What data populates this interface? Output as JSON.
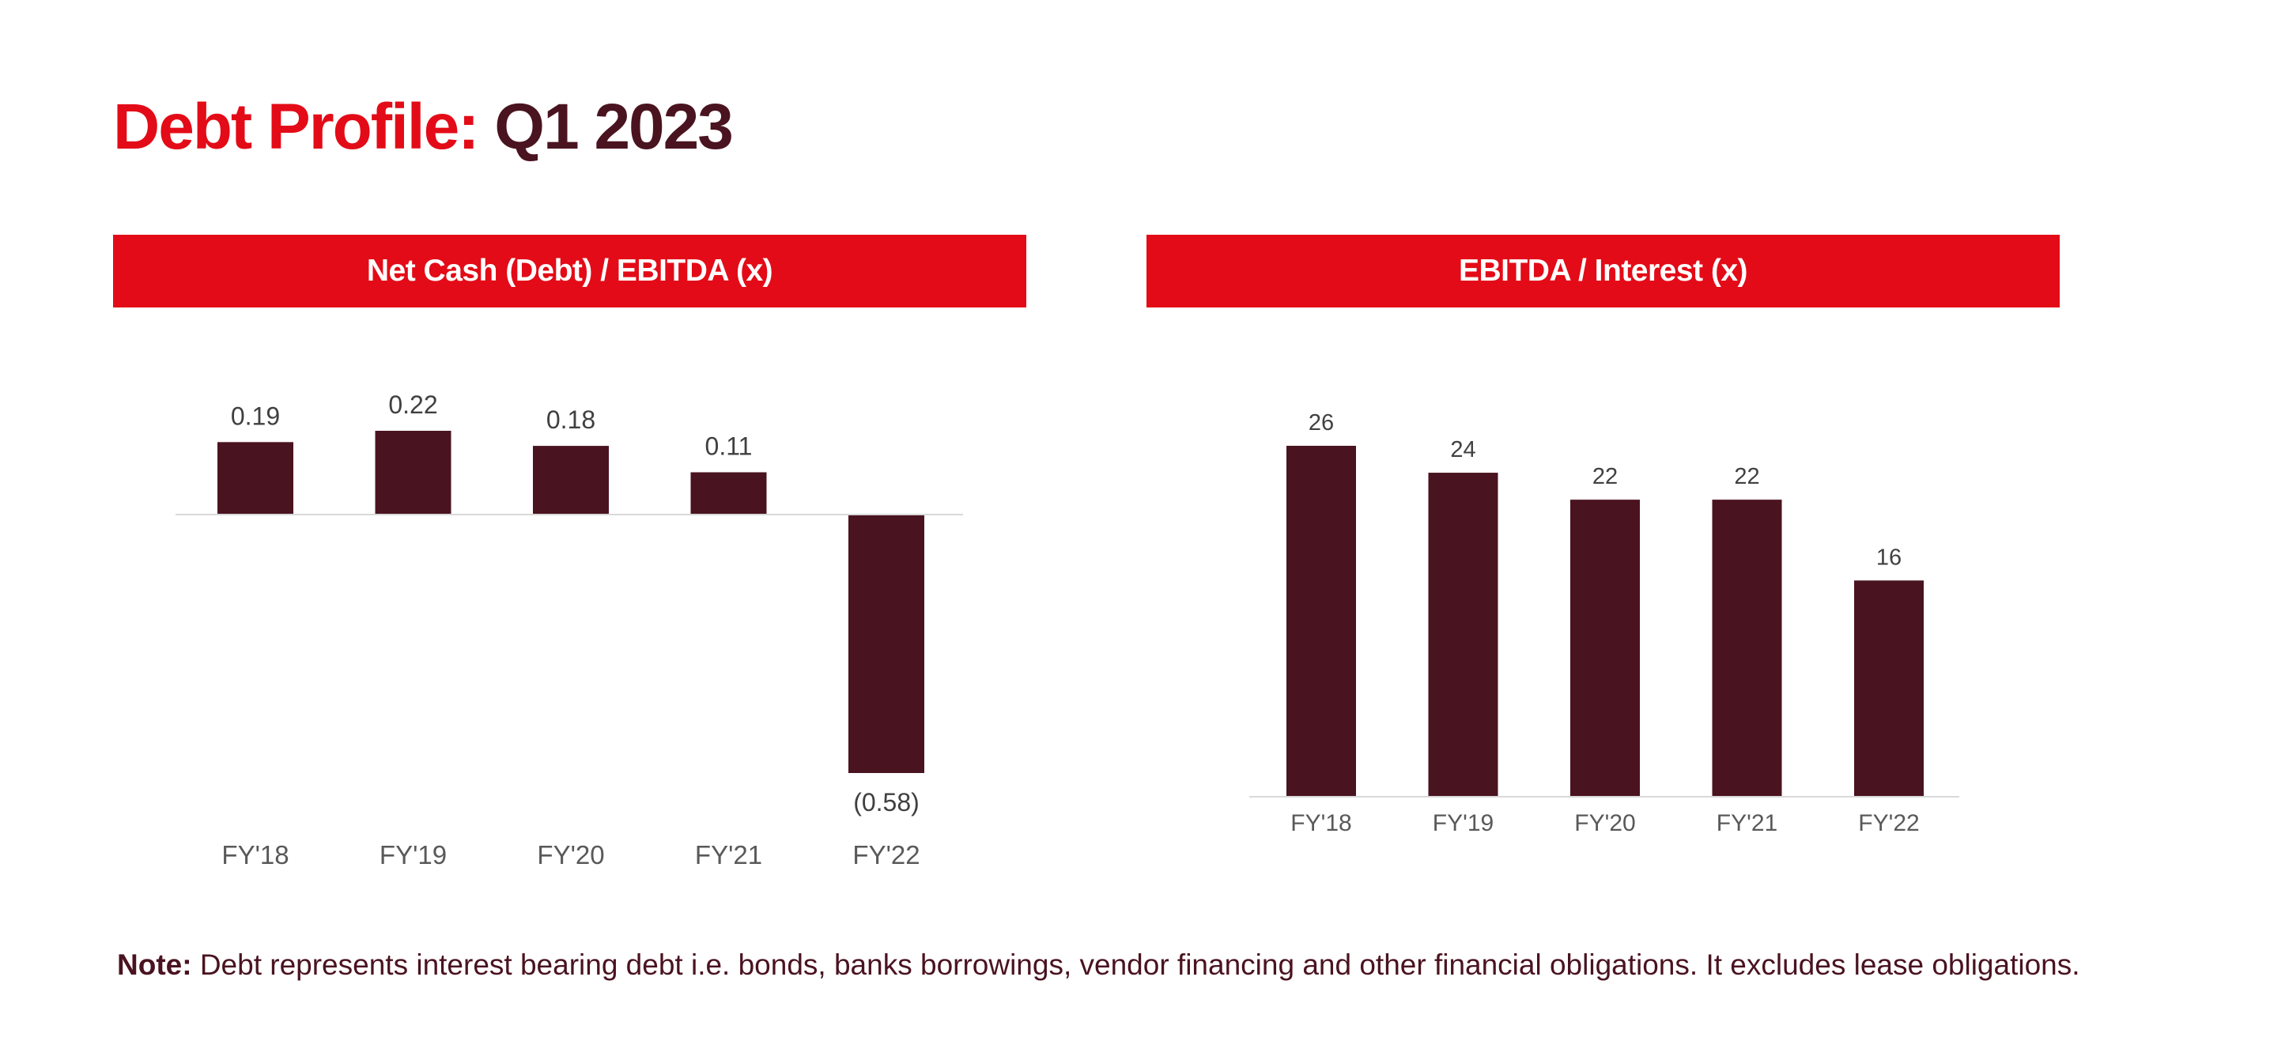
{
  "title": {
    "part1": "Debt Profile:",
    "part2": "Q1 2023"
  },
  "colors": {
    "accent": "#e30b17",
    "bar": "#4a1320",
    "axis": "#d9d9d9",
    "label": "#404040",
    "tick": "#595959"
  },
  "note": {
    "label": "Note:",
    "text": "Debt represents interest bearing debt i.e. bonds, banks borrowings, vendor financing and other financial obligations. It excludes lease obligations."
  },
  "chart_data": [
    {
      "type": "bar",
      "title": "Net Cash (Debt) / EBITDA (x)",
      "categories": [
        "FY'18",
        "FY'19",
        "FY'20",
        "FY'21",
        "FY'22"
      ],
      "values": [
        0.19,
        0.22,
        0.18,
        0.11,
        -0.58
      ],
      "labels": [
        "0.19",
        "0.22",
        "0.18",
        "0.11",
        "(0.58)"
      ],
      "ylim": [
        -0.58,
        0.22
      ],
      "grid": false
    },
    {
      "type": "bar",
      "title": "EBITDA / Interest (x)",
      "categories": [
        "FY'18",
        "FY'19",
        "FY'20",
        "FY'21",
        "FY'22"
      ],
      "values": [
        26,
        24,
        22,
        22,
        16
      ],
      "labels": [
        "26",
        "24",
        "22",
        "22",
        "16"
      ],
      "ylim": [
        0,
        26
      ],
      "grid": false
    }
  ]
}
